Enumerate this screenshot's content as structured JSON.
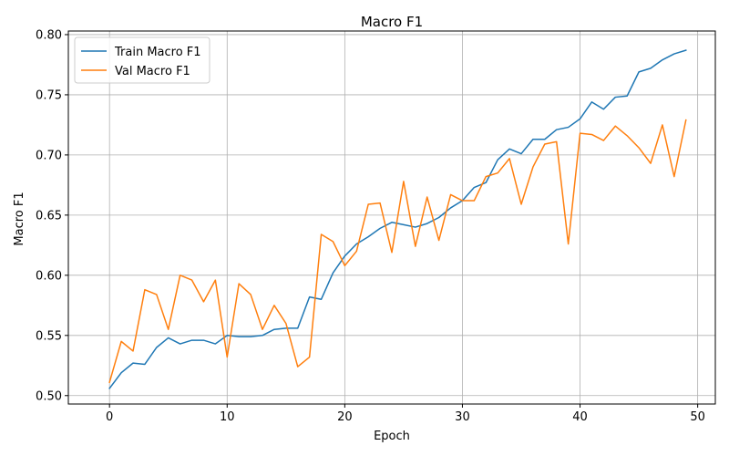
{
  "chart_data": {
    "type": "line",
    "title": "Macro F1",
    "xlabel": "Epoch",
    "ylabel": "Macro F1",
    "xlim": [
      -3.5,
      51.5
    ],
    "ylim": [
      0.493,
      0.803
    ],
    "xticks": [
      0,
      10,
      20,
      30,
      40,
      50
    ],
    "yticks": [
      0.5,
      0.55,
      0.6,
      0.65,
      0.7,
      0.75,
      0.8
    ],
    "grid": true,
    "legend_position": "top-left",
    "x": [
      0,
      1,
      2,
      3,
      4,
      5,
      6,
      7,
      8,
      9,
      10,
      11,
      12,
      13,
      14,
      15,
      16,
      17,
      18,
      19,
      20,
      21,
      22,
      23,
      24,
      25,
      26,
      27,
      28,
      29,
      30,
      31,
      32,
      33,
      34,
      35,
      36,
      37,
      38,
      39,
      40,
      41,
      42,
      43,
      44,
      45,
      46,
      47,
      48,
      49
    ],
    "series": [
      {
        "name": "Train Macro F1",
        "color": "#1f77b4",
        "values": [
          0.506,
          0.519,
          0.527,
          0.526,
          0.54,
          0.548,
          0.543,
          0.546,
          0.546,
          0.543,
          0.55,
          0.549,
          0.549,
          0.55,
          0.555,
          0.556,
          0.556,
          0.582,
          0.58,
          0.602,
          0.616,
          0.626,
          0.632,
          0.639,
          0.644,
          0.642,
          0.64,
          0.643,
          0.648,
          0.656,
          0.662,
          0.673,
          0.677,
          0.696,
          0.705,
          0.701,
          0.713,
          0.713,
          0.721,
          0.723,
          0.73,
          0.744,
          0.738,
          0.748,
          0.749,
          0.769,
          0.772,
          0.779,
          0.784,
          0.787
        ]
      },
      {
        "name": "Val Macro F1",
        "color": "#ff7f0e",
        "values": [
          0.511,
          0.545,
          0.537,
          0.588,
          0.584,
          0.555,
          0.6,
          0.596,
          0.578,
          0.596,
          0.532,
          0.593,
          0.584,
          0.555,
          0.575,
          0.56,
          0.524,
          0.532,
          0.634,
          0.628,
          0.608,
          0.62,
          0.659,
          0.66,
          0.619,
          0.678,
          0.624,
          0.665,
          0.629,
          0.667,
          0.662,
          0.662,
          0.682,
          0.685,
          0.697,
          0.659,
          0.69,
          0.709,
          0.711,
          0.626,
          0.718,
          0.717,
          0.712,
          0.724,
          0.716,
          0.706,
          0.693,
          0.725,
          0.682,
          0.729
        ]
      }
    ]
  }
}
